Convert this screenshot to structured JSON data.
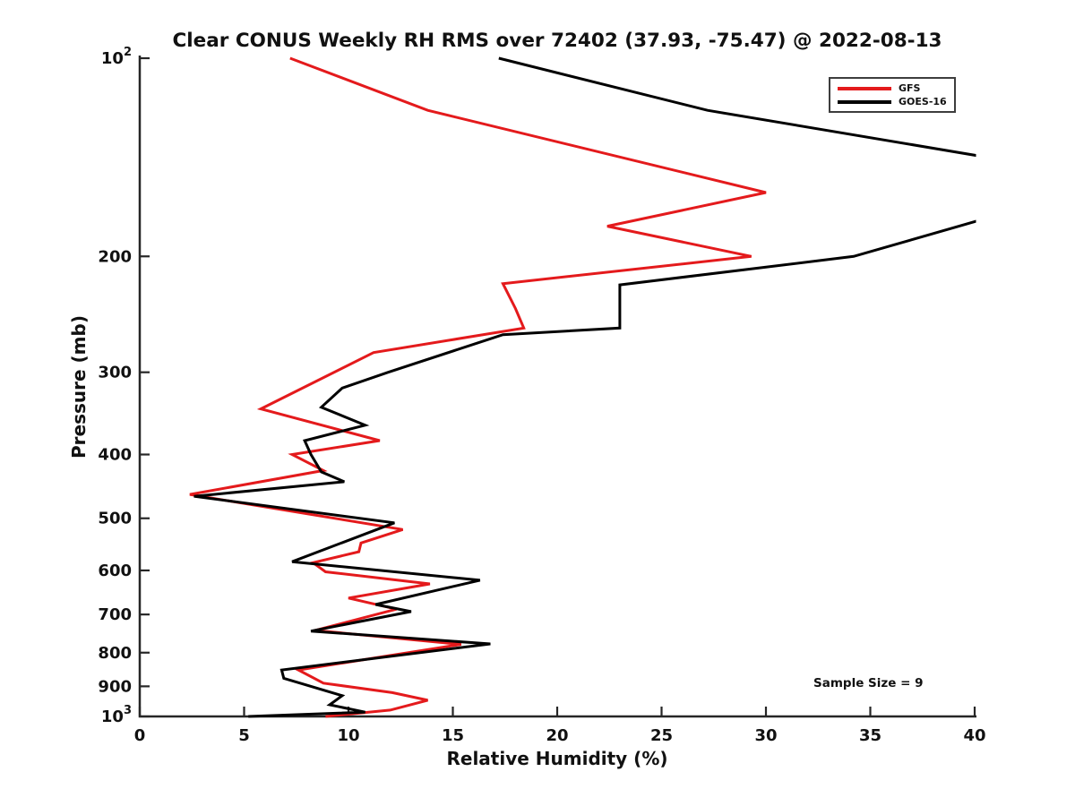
{
  "chart_data": {
    "type": "line",
    "title": "Clear CONUS Weekly RH RMS over 72402 (37.93, -75.47) @ 2022-08-13",
    "xlabel": "Relative Humidity (%)",
    "ylabel": "Pressure (mb)",
    "xlim": [
      0,
      40
    ],
    "x_ticks": [
      0,
      5,
      10,
      15,
      20,
      25,
      30,
      35,
      40
    ],
    "y_scale": "log",
    "y_inverted": true,
    "ylim": [
      100,
      1000
    ],
    "y_ticks": [
      {
        "value": 100,
        "label": "10²",
        "base": "10",
        "exp": "2"
      },
      {
        "value": 200,
        "label": "200"
      },
      {
        "value": 300,
        "label": "300"
      },
      {
        "value": 400,
        "label": "400"
      },
      {
        "value": 500,
        "label": "500"
      },
      {
        "value": 600,
        "label": "600"
      },
      {
        "value": 700,
        "label": "700"
      },
      {
        "value": 800,
        "label": "800"
      },
      {
        "value": 900,
        "label": "900"
      },
      {
        "value": 1000,
        "label": "10³",
        "base": "10",
        "exp": "3"
      }
    ],
    "grid": false,
    "axis_color": "#262626",
    "legend": {
      "position": "upper right",
      "items": [
        {
          "label": "GFS",
          "color": "#e41a1c"
        },
        {
          "label": "GOES-16",
          "color": "#000000"
        }
      ]
    },
    "annotation": "Sample Size = 9",
    "series": [
      {
        "name": "GFS",
        "color": "#e41a1c",
        "points_rh_pressure": [
          [
            7.2,
            100
          ],
          [
            13.8,
            120
          ],
          [
            30.0,
            160
          ],
          [
            22.4,
            180
          ],
          [
            29.3,
            200
          ],
          [
            17.4,
            220
          ],
          [
            18.0,
            240
          ],
          [
            18.4,
            257
          ],
          [
            11.2,
            280
          ],
          [
            5.8,
            341
          ],
          [
            11.5,
            381
          ],
          [
            7.3,
            400
          ],
          [
            8.8,
            423
          ],
          [
            2.4,
            460
          ],
          [
            12.6,
            520
          ],
          [
            10.6,
            545
          ],
          [
            10.5,
            562
          ],
          [
            8.3,
            584
          ],
          [
            8.9,
            603
          ],
          [
            13.9,
            629
          ],
          [
            10.0,
            661
          ],
          [
            12.3,
            687
          ],
          [
            8.4,
            740
          ],
          [
            15.4,
            777
          ],
          [
            7.6,
            850
          ],
          [
            8.8,
            890
          ],
          [
            12.1,
            920
          ],
          [
            13.8,
            945
          ],
          [
            12.0,
            978
          ],
          [
            8.9,
            1000
          ]
        ]
      },
      {
        "name": "GOES-16",
        "color": "#000000",
        "note": "segment near 150 mb exceeds x-limit of 40 and is clipped at the axis edge",
        "points_rh_pressure": [
          [
            17.2,
            100
          ],
          [
            27.2,
            120
          ],
          [
            47.0,
            153
          ],
          [
            34.2,
            200
          ],
          [
            23.0,
            221
          ],
          [
            23.0,
            257
          ],
          [
            17.4,
            263
          ],
          [
            11.9,
            300
          ],
          [
            9.7,
            317
          ],
          [
            8.7,
            339
          ],
          [
            10.8,
            361
          ],
          [
            7.9,
            381
          ],
          [
            8.2,
            400
          ],
          [
            8.7,
            425
          ],
          [
            9.8,
            440
          ],
          [
            2.6,
            463
          ],
          [
            12.2,
            508
          ],
          [
            7.3,
            582
          ],
          [
            16.3,
            621
          ],
          [
            11.3,
            676
          ],
          [
            13.0,
            693
          ],
          [
            8.2,
            742
          ],
          [
            16.8,
            776
          ],
          [
            6.8,
            850
          ],
          [
            6.9,
            875
          ],
          [
            9.7,
            930
          ],
          [
            9.1,
            960
          ],
          [
            10.8,
            985
          ],
          [
            5.2,
            1000
          ]
        ]
      }
    ]
  }
}
